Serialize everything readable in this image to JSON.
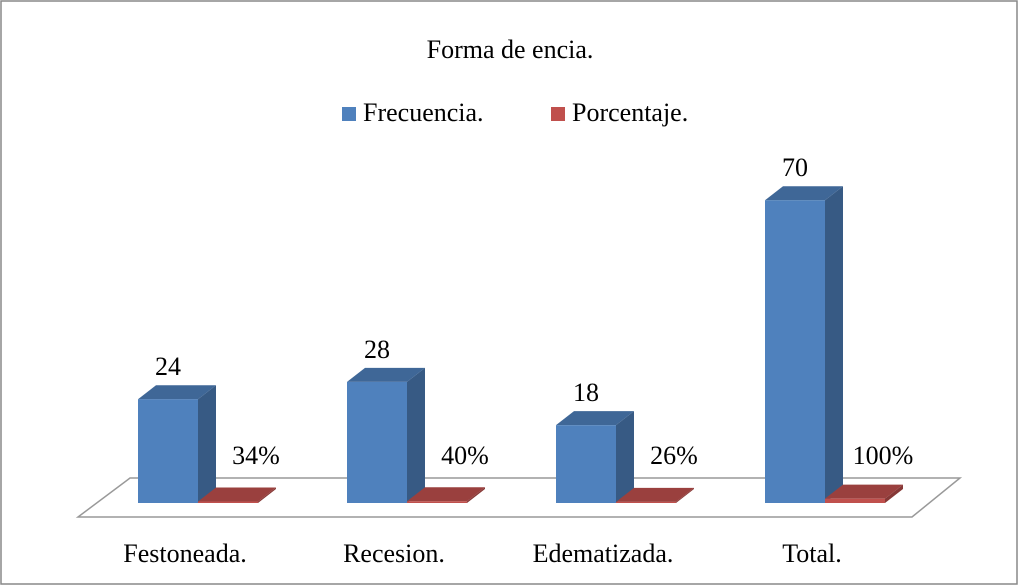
{
  "chart_data": {
    "type": "bar3d",
    "title": "Forma de encia.",
    "categories": [
      "Festoneada.",
      "Recesion.",
      "Edematizada.",
      "Total."
    ],
    "series": [
      {
        "name": "Frecuencia.",
        "color": "#4f81bd",
        "values": [
          24,
          28,
          18,
          70
        ]
      },
      {
        "name": "Porcentaje.",
        "color": "#c0504d",
        "values": [
          0.34,
          0.4,
          0.26,
          1
        ],
        "value_labels": [
          "34%",
          "40%",
          "26%",
          "100%"
        ]
      }
    ],
    "ylim": [
      0,
      80
    ],
    "legend": "top"
  }
}
